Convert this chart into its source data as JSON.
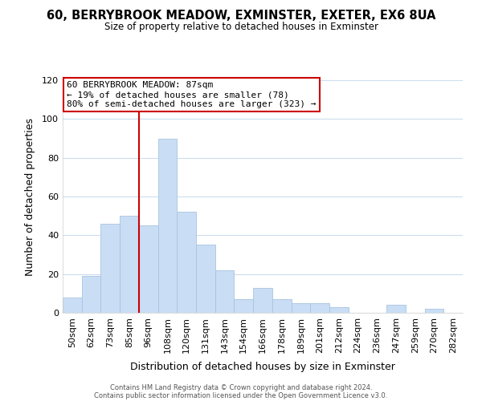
{
  "title": "60, BERRYBROOK MEADOW, EXMINSTER, EXETER, EX6 8UA",
  "subtitle": "Size of property relative to detached houses in Exminster",
  "xlabel": "Distribution of detached houses by size in Exminster",
  "ylabel": "Number of detached properties",
  "categories": [
    "50sqm",
    "62sqm",
    "73sqm",
    "85sqm",
    "96sqm",
    "108sqm",
    "120sqm",
    "131sqm",
    "143sqm",
    "154sqm",
    "166sqm",
    "178sqm",
    "189sqm",
    "201sqm",
    "212sqm",
    "224sqm",
    "236sqm",
    "247sqm",
    "259sqm",
    "270sqm",
    "282sqm"
  ],
  "values": [
    8,
    19,
    46,
    50,
    45,
    90,
    52,
    35,
    22,
    7,
    13,
    7,
    5,
    5,
    3,
    0,
    0,
    4,
    0,
    2,
    0
  ],
  "bar_color": "#c9ddf5",
  "bar_edge_color": "#a8c4e0",
  "vline_x_index": 3,
  "vline_color": "#cc0000",
  "annotation_title": "60 BERRYBROOK MEADOW: 87sqm",
  "annotation_line1": "← 19% of detached houses are smaller (78)",
  "annotation_line2": "80% of semi-detached houses are larger (323) →",
  "annotation_box_edge_color": "#cc0000",
  "annotation_box_face_color": "#ffffff",
  "ylim": [
    0,
    120
  ],
  "yticks": [
    0,
    20,
    40,
    60,
    80,
    100,
    120
  ],
  "footer1": "Contains HM Land Registry data © Crown copyright and database right 2024.",
  "footer2": "Contains public sector information licensed under the Open Government Licence v3.0.",
  "background_color": "#ffffff",
  "grid_color": "#ccdded"
}
